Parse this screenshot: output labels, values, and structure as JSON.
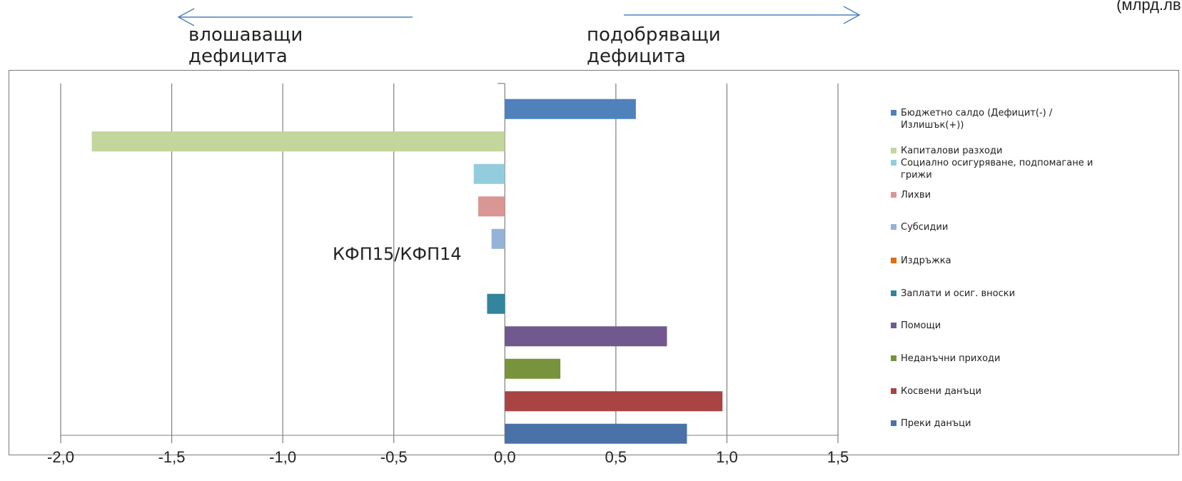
{
  "unit_label": "(млрд.лв.)",
  "annotations": {
    "left_label": "влошаващи дефицита",
    "right_label": "подобряващи дефицита"
  },
  "colors": {
    "arrow": "#4f81bd",
    "axis": "#7f7f7f",
    "grid": "#7f7f7f"
  },
  "chart_data": {
    "type": "bar",
    "orientation": "horizontal",
    "title": "КФП15/КФП14",
    "xlim": [
      -2.0,
      1.5
    ],
    "x_ticks": [
      "-2,0",
      "-1,5",
      "-1,0",
      "-0,5",
      "0,0",
      "0,5",
      "1,0",
      "1,5"
    ],
    "x_tick_values": [
      -2.0,
      -1.5,
      -1.0,
      -0.5,
      0.0,
      0.5,
      1.0,
      1.5
    ],
    "grid": true,
    "legend_position": "right",
    "categories": [
      "Бюджетно салдо (Дефицит(-) / Излишък(+))",
      "Капиталови разходи",
      "Социално осигуряване, подпомагане и грижи",
      "Лихви",
      "Субсидии",
      "Издръжка",
      "Заплати и осиг. вноски",
      "Помощи",
      "Неданъчни приходи",
      "Косвени данъци",
      "Преки данъци"
    ],
    "values": [
      0.59,
      -1.86,
      -0.14,
      -0.12,
      -0.06,
      0.0,
      -0.08,
      0.73,
      0.25,
      0.98,
      0.82
    ],
    "colors": [
      "#4f81bd",
      "#c3d69b",
      "#93cddd",
      "#d99694",
      "#95b3d7",
      "#e46c0a",
      "#31859c",
      "#71588f",
      "#77933c",
      "#a94442",
      "#4a72a8"
    ]
  }
}
